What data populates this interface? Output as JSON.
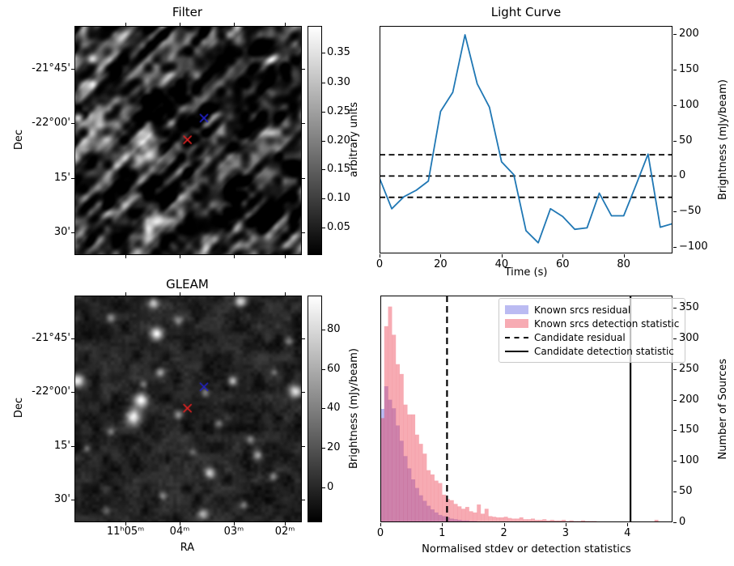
{
  "figure": {
    "bg": "#ffffff"
  },
  "panels": {
    "filter": {
      "title": "Filter",
      "ylabel": "Dec",
      "yticks": [
        {
          "f": 0.189,
          "label": "-21°45'"
        },
        {
          "f": 0.4285,
          "label": "-22°00'"
        },
        {
          "f": 0.668,
          "label": "15'"
        },
        {
          "f": 0.9075,
          "label": "30'"
        }
      ],
      "xticks": [
        {
          "f": 0.226,
          "label": ""
        },
        {
          "f": 0.466,
          "label": ""
        },
        {
          "f": 0.706,
          "label": ""
        },
        {
          "f": 0.932,
          "label": ""
        }
      ],
      "colorbar": {
        "label": "arbitrary units",
        "ticks": [
          {
            "f": 0.117,
            "label": "0.35"
          },
          {
            "f": 0.25,
            "label": "0.30"
          },
          {
            "f": 0.378,
            "label": "0.25"
          },
          {
            "f": 0.506,
            "label": "0.20"
          },
          {
            "f": 0.631,
            "label": "0.15"
          },
          {
            "f": 0.758,
            "label": "0.10"
          },
          {
            "f": 0.886,
            "label": "0.05"
          }
        ]
      },
      "markers": [
        {
          "name": "blue-cross-marker",
          "color": "#2222cc",
          "fx": 0.57,
          "fy": 0.402
        },
        {
          "name": "red-cross-marker",
          "color": "#dd2222",
          "fx": 0.497,
          "fy": 0.497
        }
      ]
    },
    "light_curve": {
      "title": "Light Curve",
      "xlabel": "Time (s)",
      "ylabel": "Brightness (mJy/beam)",
      "xticks": [
        {
          "f": 0.0,
          "label": "0"
        },
        {
          "f": 0.2083,
          "label": "20"
        },
        {
          "f": 0.4167,
          "label": "40"
        },
        {
          "f": 0.625,
          "label": "60"
        },
        {
          "f": 0.8333,
          "label": "80"
        }
      ],
      "yticks": [
        {
          "f": 0.0359,
          "label": "200"
        },
        {
          "f": 0.1919,
          "label": "150"
        },
        {
          "f": 0.3479,
          "label": "100"
        },
        {
          "f": 0.5039,
          "label": "50"
        },
        {
          "f": 0.6599,
          "label": "0"
        },
        {
          "f": 0.8159,
          "label": "−50"
        },
        {
          "f": 0.9719,
          "label": "−100"
        }
      ]
    },
    "gleam": {
      "title": "GLEAM",
      "xlabel": "RA",
      "ylabel": "Dec",
      "yticks": [
        {
          "f": 0.189,
          "label": "-21°45'"
        },
        {
          "f": 0.4285,
          "label": "-22°00'"
        },
        {
          "f": 0.668,
          "label": "15'"
        },
        {
          "f": 0.9075,
          "label": "30'"
        }
      ],
      "xticks": [
        {
          "f": 0.226,
          "label": "11ʰ05ᵐ"
        },
        {
          "f": 0.466,
          "label": "04ᵐ"
        },
        {
          "f": 0.706,
          "label": "03ᵐ"
        },
        {
          "f": 0.932,
          "label": "02ᵐ"
        }
      ],
      "colorbar": {
        "label": "Brightness (mJy/beam)",
        "ticks": [
          {
            "f": 0.151,
            "label": "80"
          },
          {
            "f": 0.326,
            "label": "60"
          },
          {
            "f": 0.501,
            "label": "40"
          },
          {
            "f": 0.677,
            "label": "20"
          },
          {
            "f": 0.854,
            "label": "0"
          }
        ]
      },
      "markers": [
        {
          "name": "blue-cross-marker",
          "color": "#2222cc",
          "fx": 0.57,
          "fy": 0.402
        },
        {
          "name": "red-cross-marker",
          "color": "#dd2222",
          "fx": 0.497,
          "fy": 0.497
        }
      ]
    },
    "histogram": {
      "xlabel": "Normalised stdev or detection statistics",
      "ylabel": "Number of Sources",
      "xticks": [
        {
          "f": 0.0,
          "label": "0"
        },
        {
          "f": 0.2114,
          "label": "1"
        },
        {
          "f": 0.4228,
          "label": "2"
        },
        {
          "f": 0.6342,
          "label": "3"
        },
        {
          "f": 0.8457,
          "label": "4"
        }
      ],
      "yticks": [
        {
          "f": 1.0,
          "label": "0"
        },
        {
          "f": 0.8649,
          "label": "50"
        },
        {
          "f": 0.7297,
          "label": "100"
        },
        {
          "f": 0.5946,
          "label": "150"
        },
        {
          "f": 0.4595,
          "label": "200"
        },
        {
          "f": 0.3243,
          "label": "250"
        },
        {
          "f": 0.1892,
          "label": "300"
        },
        {
          "f": 0.0541,
          "label": "350"
        }
      ],
      "legend": [
        {
          "label": "Known srcs residual",
          "swatch": "patch-blue"
        },
        {
          "label": "Known srcs detection statistic",
          "swatch": "patch-pink"
        },
        {
          "label": "Candidate residual",
          "swatch": "dashed-line"
        },
        {
          "label": "Candidate detection statistic",
          "swatch": "solid-line"
        }
      ]
    }
  },
  "chart_data": [
    {
      "type": "heatmap",
      "panel": "filter",
      "title": "Filter",
      "ylabel": "Dec",
      "colormap": "gray",
      "colorbar_label": "arbitrary units",
      "value_range": [
        0.005,
        0.396
      ],
      "dec_ticks": [
        "-21°45'",
        "-22°00'",
        "15'",
        "30'"
      ],
      "markers": [
        {
          "color": "blue",
          "fx": 0.57,
          "fy": 0.402
        },
        {
          "color": "red",
          "fx": 0.497,
          "fy": 0.497
        }
      ]
    },
    {
      "type": "line",
      "panel": "light_curve",
      "title": "Light Curve",
      "xlabel": "Time (s)",
      "ylabel": "Brightness (mJy/beam)",
      "xlim": [
        0,
        96
      ],
      "ylim": [
        -109,
        211.5
      ],
      "line_color": "#1f77b4",
      "threshold_lines": [
        30,
        0,
        -30
      ],
      "x": [
        0,
        4,
        8,
        12,
        16,
        20,
        24,
        28,
        32,
        36,
        40,
        44,
        48,
        52,
        56,
        60,
        64,
        68,
        72,
        76,
        80,
        84,
        88,
        92,
        96
      ],
      "y": [
        -3,
        -46,
        -29,
        -20,
        -7,
        91,
        118,
        199,
        130,
        97,
        20,
        2,
        -77,
        -94,
        -46,
        -57,
        -75,
        -73,
        -24,
        -56,
        -56,
        -13,
        31,
        -72,
        -67
      ]
    },
    {
      "type": "heatmap",
      "panel": "gleam",
      "title": "GLEAM",
      "xlabel": "RA",
      "ylabel": "Dec",
      "colormap": "gray",
      "colorbar_label": "Brightness (mJy/beam)",
      "value_range": [
        -17,
        97
      ],
      "ra_ticks": [
        "11ʰ05ᵐ",
        "04ᵐ",
        "03ᵐ",
        "02ᵐ"
      ],
      "dec_ticks": [
        "-21°45'",
        "-22°00'",
        "15'",
        "30'"
      ],
      "markers": [
        {
          "color": "blue",
          "fx": 0.57,
          "fy": 0.402
        },
        {
          "color": "red",
          "fx": 0.497,
          "fy": 0.497
        }
      ]
    },
    {
      "type": "histogram",
      "panel": "histogram",
      "xlabel": "Normalised stdev or detection statistics",
      "ylabel": "Number of Sources",
      "xlim": [
        0,
        4.73
      ],
      "ylim": [
        0,
        370
      ],
      "bin_start": 0,
      "bin_width": 0.0625,
      "series": [
        {
          "name": "Known srcs residual",
          "color": "rgba(45,45,215,0.32)",
          "counts": [
            185,
            222,
            200,
            186,
            158,
            133,
            108,
            88,
            70,
            56,
            44,
            35,
            27,
            21,
            16,
            12,
            10,
            8,
            6,
            5,
            4,
            3,
            3,
            2,
            2,
            1,
            1,
            1,
            0,
            0,
            0,
            0,
            0,
            0,
            0,
            0,
            0,
            0,
            0,
            0,
            0,
            0,
            0,
            0,
            0,
            0,
            0,
            0,
            0,
            0,
            0,
            0,
            0,
            0,
            0,
            0,
            0,
            0,
            0,
            0,
            0,
            0,
            0,
            0,
            0,
            0,
            0,
            0,
            0,
            0,
            0,
            0,
            0,
            0
          ]
        },
        {
          "name": "Known srcs detection statistic",
          "color": "rgba(235,45,65,0.4)",
          "counts": [
            170,
            320,
            352,
            306,
            258,
            242,
            192,
            176,
            176,
            143,
            128,
            112,
            85,
            78,
            68,
            64,
            45,
            38,
            36,
            30,
            26,
            22,
            25,
            18,
            16,
            29,
            14,
            22,
            10,
            9,
            8,
            8,
            9,
            7,
            6,
            6,
            8,
            5,
            5,
            6,
            4,
            4,
            5,
            3,
            4,
            3,
            3,
            4,
            2,
            3,
            2,
            2,
            3,
            2,
            2,
            2,
            0,
            0,
            0,
            0,
            0,
            0,
            0,
            0,
            0,
            0,
            0,
            0,
            0,
            0,
            0,
            4,
            0,
            0
          ]
        }
      ],
      "vlines": [
        {
          "name": "Candidate residual",
          "x": 1.08,
          "style": "dashed",
          "color": "#000000"
        },
        {
          "name": "Candidate detection statistic",
          "x": 4.05,
          "style": "solid",
          "color": "#000000"
        }
      ]
    }
  ]
}
